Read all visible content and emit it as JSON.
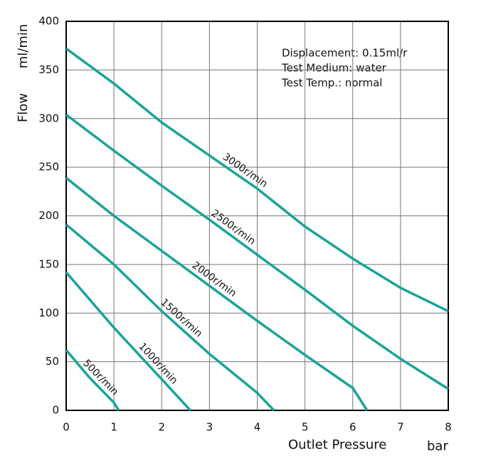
{
  "chart_data": {
    "type": "line",
    "x_label": "Outlet Pressure",
    "x_unit": "bar",
    "y_label": "Flow",
    "y_unit": "ml/min",
    "annotations": [
      "Displacement: 0.15ml/r",
      "Test Medium: water",
      "Test Temp.: normal"
    ],
    "xlim": [
      0,
      8
    ],
    "xticks": [
      0,
      1,
      2,
      3,
      4,
      5,
      6,
      7,
      8
    ],
    "ylim": [
      0,
      400
    ],
    "yticks": [
      0,
      50,
      100,
      150,
      200,
      250,
      300,
      350,
      400
    ],
    "grid": true,
    "series": [
      {
        "name": "3000r/min",
        "color": "#1aa39a",
        "x": [
          0,
          1,
          2,
          3,
          4,
          5,
          6,
          7,
          8
        ],
        "values": [
          372,
          336,
          296,
          262,
          228,
          189,
          156,
          126,
          102
        ]
      },
      {
        "name": "2500r/min",
        "color": "#1aa39a",
        "x": [
          0,
          1,
          2,
          3,
          4,
          5,
          6,
          7,
          8
        ],
        "values": [
          304,
          267,
          231,
          196,
          160,
          124,
          87,
          53,
          22
        ]
      },
      {
        "name": "2000r/min",
        "color": "#1aa39a",
        "x": [
          0,
          1,
          2,
          3,
          4,
          5,
          6,
          6.3
        ],
        "values": [
          239,
          200,
          164,
          128,
          92,
          57,
          23,
          0
        ]
      },
      {
        "name": "1500r/min",
        "color": "#1aa39a",
        "x": [
          0,
          1,
          2,
          3,
          4,
          4.35
        ],
        "values": [
          191,
          150,
          102,
          58,
          18,
          0
        ]
      },
      {
        "name": "1000r/min",
        "color": "#1aa39a",
        "x": [
          0,
          1,
          2,
          2.6
        ],
        "values": [
          142,
          85,
          32,
          0
        ]
      },
      {
        "name": "500r/min",
        "color": "#1aa39a",
        "x": [
          0,
          0.5,
          1,
          1.1
        ],
        "values": [
          62,
          33,
          8,
          0
        ]
      }
    ]
  }
}
